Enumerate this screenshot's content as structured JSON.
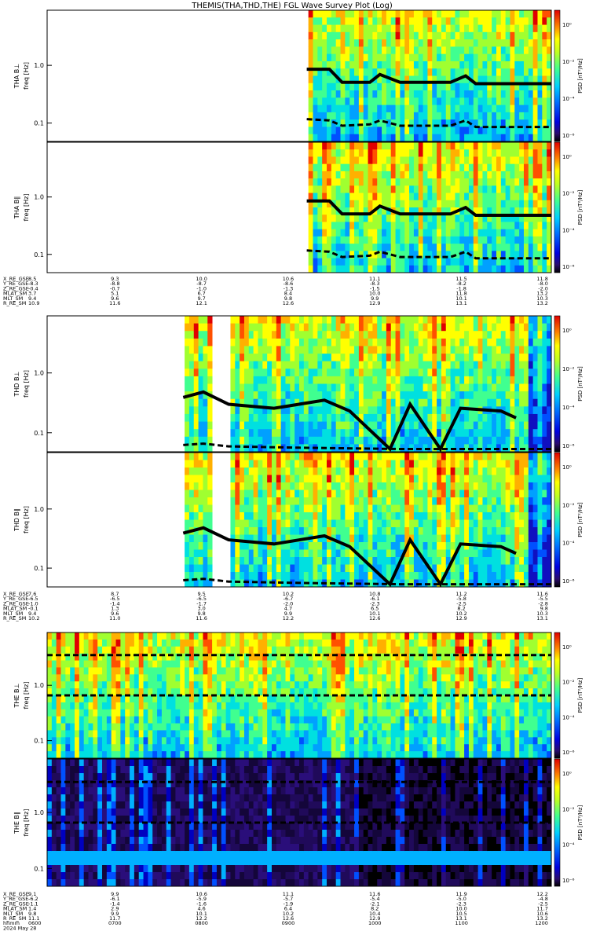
{
  "title": "THEMIS(THA,THD,THE) FGL Wave Survey Plot (Log)",
  "colorbar": {
    "label": "PSD [nT²/Hz]",
    "ticks": [
      "10⁰",
      "10⁻²",
      "10⁻⁴",
      "10⁻⁶"
    ]
  },
  "freq_ticks": [
    "1.0",
    "0.1"
  ],
  "chart_data": [
    {
      "type": "heatmap",
      "name": "THA",
      "panels": [
        {
          "ylabel_top": "THA B⊥",
          "ylabel": "freq [Hz]",
          "data_start_frac": 0.515,
          "gaps": []
        },
        {
          "ylabel_top": "THA B∥",
          "ylabel": "freq [Hz]",
          "data_start_frac": 0.515,
          "gaps": []
        }
      ],
      "lines": {
        "solid": [
          [
            0.515,
            0.55
          ],
          [
            0.56,
            0.55
          ],
          [
            0.585,
            0.45
          ],
          [
            0.64,
            0.45
          ],
          [
            0.66,
            0.51
          ],
          [
            0.7,
            0.45
          ],
          [
            0.8,
            0.45
          ],
          [
            0.83,
            0.5
          ],
          [
            0.85,
            0.44
          ],
          [
            1.0,
            0.44
          ]
        ],
        "dashed": [
          [
            0.515,
            0.17
          ],
          [
            0.56,
            0.16
          ],
          [
            0.585,
            0.12
          ],
          [
            0.64,
            0.13
          ],
          [
            0.66,
            0.16
          ],
          [
            0.7,
            0.12
          ],
          [
            0.8,
            0.12
          ],
          [
            0.83,
            0.16
          ],
          [
            0.85,
            0.11
          ],
          [
            1.0,
            0.11
          ]
        ]
      },
      "orbit": {
        "labels": [
          "X_RE_GSE",
          "Y_RE_GSE",
          "Z_RE_GSE",
          "MLAT_SM",
          "MLT_SM",
          "R_RE_SM"
        ],
        "columns": [
          [
            "8.5",
            "-8.3",
            "-0.4",
            "3.7",
            "9.4",
            "10.9"
          ],
          [
            "9.3",
            "-8.8",
            "-0.7",
            "5.1",
            "9.6",
            "11.6"
          ],
          [
            "10.0",
            "-8.7",
            "-1.0",
            "6.7",
            "9.7",
            "12.1"
          ],
          [
            "10.6",
            "-8.6",
            "-1.3",
            "8.4",
            "9.8",
            "12.6"
          ],
          [
            "11.1",
            "-8.3",
            "-1.5",
            "10.0",
            "9.9",
            "12.9"
          ],
          [
            "11.5",
            "-8.2",
            "-1.8",
            "11.8",
            "10.1",
            "13.1"
          ],
          [
            "11.8",
            "-8.0",
            "-2.0",
            "13.2",
            "10.3",
            "13.2"
          ]
        ]
      }
    },
    {
      "type": "heatmap",
      "name": "THD",
      "panels": [
        {
          "ylabel_top": "THD B⊥",
          "ylabel": "freq [Hz]",
          "data_start_frac": 0.27,
          "gaps": [
            [
              0.32,
              0.36
            ]
          ]
        },
        {
          "ylabel_top": "THD B∥",
          "ylabel": "freq [Hz]",
          "data_start_frac": 0.27,
          "gaps": [
            [
              0.32,
              0.36
            ]
          ]
        }
      ],
      "lines": {
        "solid": [
          [
            0.27,
            0.4
          ],
          [
            0.31,
            0.44
          ],
          [
            0.36,
            0.35
          ],
          [
            0.45,
            0.32
          ],
          [
            0.55,
            0.38
          ],
          [
            0.6,
            0.3
          ],
          [
            0.68,
            0.02
          ],
          [
            0.72,
            0.35
          ],
          [
            0.78,
            0.02
          ],
          [
            0.82,
            0.32
          ],
          [
            0.9,
            0.3
          ],
          [
            0.93,
            0.25
          ]
        ],
        "dashed": [
          [
            0.27,
            0.05
          ],
          [
            0.31,
            0.06
          ],
          [
            0.36,
            0.04
          ],
          [
            0.5,
            0.03
          ],
          [
            0.7,
            0.02
          ],
          [
            0.9,
            0.02
          ],
          [
            1.0,
            0.02
          ]
        ]
      },
      "orbit": {
        "labels": [
          "X_RE_GSE",
          "Y_RE_GSE",
          "Z_RE_GSE",
          "MLAT_SM",
          "MLT_SM",
          "R_RE_SM"
        ],
        "columns": [
          [
            "7.6",
            "-6.5",
            "-1.0",
            "-0.1",
            "9.4",
            "10.2"
          ],
          [
            "8.7",
            "-6.5",
            "-1.4",
            "1.3",
            "9.6",
            "11.0"
          ],
          [
            "9.5",
            "-6.5",
            "-1.7",
            "3.0",
            "9.8",
            "11.6"
          ],
          [
            "10.2",
            "-6.7",
            "-2.0",
            "4.7",
            "9.9",
            "12.2"
          ],
          [
            "10.8",
            "-6.1",
            "-2.3",
            "6.5",
            "10.1",
            "12.6"
          ],
          [
            "11.2",
            "-5.8",
            "-2.5",
            "8.2",
            "10.2",
            "12.9"
          ],
          [
            "11.6",
            "-5.5",
            "-2.8",
            "9.8",
            "10.3",
            "13.1"
          ]
        ]
      }
    },
    {
      "type": "heatmap",
      "name": "THE",
      "panels": [
        {
          "ylabel_top": "THE B⊥",
          "ylabel": "freq [Hz]",
          "data_start_frac": 0.0,
          "gaps": []
        },
        {
          "ylabel_top": "THE B∥",
          "ylabel": "freq [Hz]",
          "data_start_frac": 0.0,
          "gaps": []
        }
      ],
      "lines": {
        "dashed_upper": [
          [
            0.0,
            0.82
          ],
          [
            1.0,
            0.82
          ]
        ],
        "dashed_lower": [
          [
            0.0,
            0.5
          ],
          [
            1.0,
            0.5
          ]
        ]
      },
      "orbit": {
        "labels": [
          "X_RE_GSE",
          "Y_RE_GSE",
          "Z_RE_GSE",
          "MLAT_SM",
          "MLT_SM",
          "R_RE_SM",
          "hhmm",
          "2024 May 28"
        ],
        "columns": [
          [
            "9.1",
            "-6.2",
            "-1.1",
            "1.4",
            "9.8",
            "11.1",
            "0600"
          ],
          [
            "9.9",
            "-6.1",
            "-1.4",
            "2.9",
            "9.9",
            "11.7",
            "0700"
          ],
          [
            "10.6",
            "-5.9",
            "-1.6",
            "4.6",
            "10.1",
            "12.2",
            "0800"
          ],
          [
            "11.1",
            "-5.7",
            "-1.9",
            "6.4",
            "10.2",
            "12.6",
            "0900"
          ],
          [
            "11.6",
            "-5.4",
            "-2.1",
            "8.2",
            "10.4",
            "12.9",
            "1000"
          ],
          [
            "11.9",
            "-5.0",
            "-2.3",
            "10.0",
            "10.5",
            "13.1",
            "1100"
          ],
          [
            "12.2",
            "-4.8",
            "-2.5",
            "11.7",
            "10.6",
            "13.2",
            "1200"
          ]
        ]
      }
    }
  ]
}
